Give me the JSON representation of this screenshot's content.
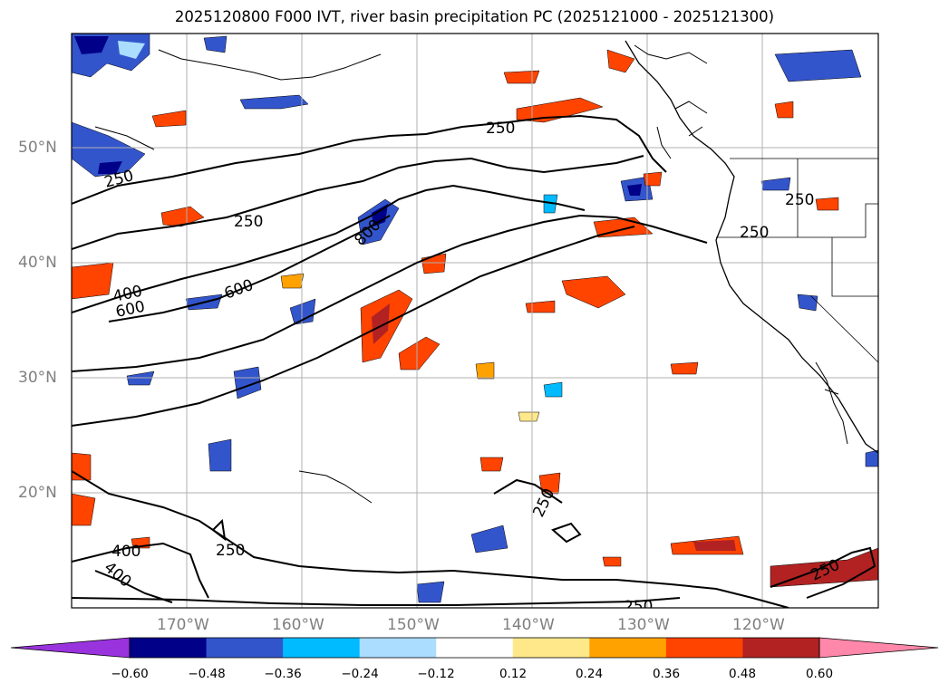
{
  "title": "2025120800 F000 IVT, river basin precipitation PC (2025121000 - 2025121300)",
  "map": {
    "latitude_labels": [
      "50°N",
      "40°N",
      "30°N",
      "20°N"
    ],
    "longitude_labels": [
      "170°W",
      "160°W",
      "150°W",
      "140°W",
      "130°W",
      "120°W"
    ],
    "ivt_contour_labels": [
      {
        "text": "250"
      },
      {
        "text": "250"
      },
      {
        "text": "250"
      },
      {
        "text": "250"
      },
      {
        "text": "250"
      },
      {
        "text": "250"
      },
      {
        "text": "250"
      },
      {
        "text": "250"
      },
      {
        "text": "250"
      },
      {
        "text": "400"
      },
      {
        "text": "600"
      },
      {
        "text": "600"
      },
      {
        "text": "800"
      },
      {
        "text": "400"
      },
      {
        "text": "400"
      }
    ]
  },
  "colorbar": {
    "colors": [
      "#9933dd",
      "#000088",
      "#3355cc",
      "#00bbff",
      "#aaddff",
      "#ffffff",
      "#ffe88a",
      "#ffa200",
      "#ff4400",
      "#b22222",
      "#ff88aa"
    ],
    "ticks": [
      "−0.60",
      "−0.48",
      "−0.36",
      "−0.24",
      "−0.12",
      "0.12",
      "0.24",
      "0.36",
      "0.48",
      "0.60"
    ]
  },
  "colors": {
    "frame": "#000000",
    "grid": "#b0b0b0",
    "axis_label": "#808080"
  }
}
